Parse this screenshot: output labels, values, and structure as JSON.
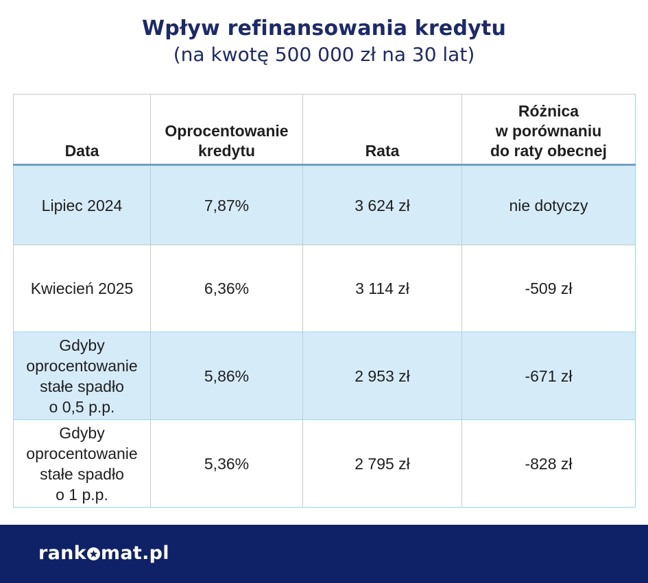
{
  "header": {
    "title": "Wpływ refinansowania kredytu",
    "subtitle": "(na kwotę 500 000 zł na 30 lat)"
  },
  "table": {
    "columns": [
      "Data",
      "Oprocentowanie\nkredytu",
      "Rata",
      "Różnica\nw porównaniu\ndo raty obecnej"
    ],
    "rows": [
      [
        "Lipiec 2024",
        "7,87%",
        "3 624 zł",
        "nie dotyczy"
      ],
      [
        "Kwiecień 2025",
        "6,36%",
        "3 114 zł",
        "-509 zł"
      ],
      [
        "Gdyby\noprocentowanie\nstałe spadło\no 0,5 p.p.",
        "5,86%",
        "2 953 zł",
        "-671 zł"
      ],
      [
        "Gdyby\noprocentowanie\nstałe spadło\no 1 p.p.",
        "5,36%",
        "2 795 zł",
        "-828 zł"
      ]
    ]
  },
  "footer": {
    "logo_prefix": "rank",
    "logo_suffix": "mat.pl",
    "logo_icon": "star-in-circle-icon"
  },
  "colors": {
    "title": "#1c2a6b",
    "header_rule": "#5aa6d3",
    "row_shade": "#d5ecf8",
    "grid": "#a9d3e8",
    "footer_bg": "#0f2167"
  }
}
